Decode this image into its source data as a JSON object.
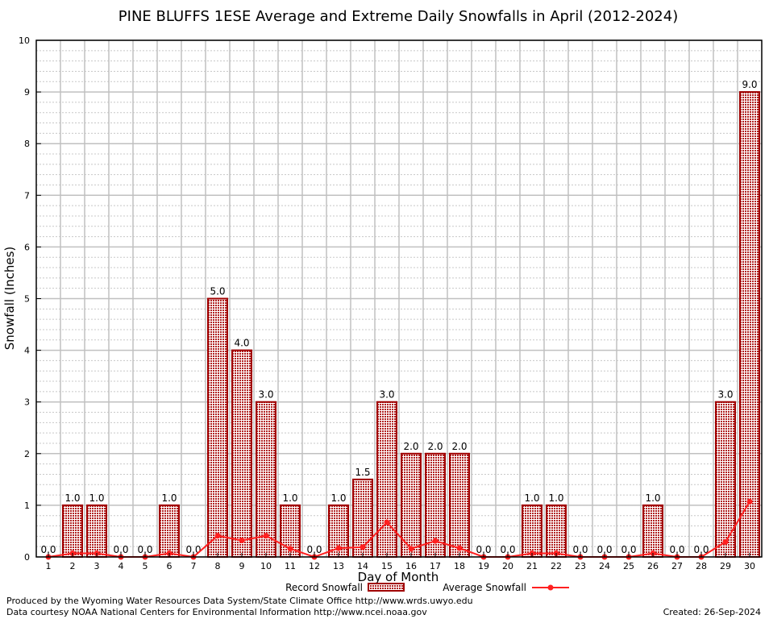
{
  "chart_data": {
    "type": "bar",
    "title": "PINE BLUFFS 1ESE Average and Extreme Daily Snowfalls in April (2012-2024)",
    "xlabel": "Day of Month",
    "ylabel": "Snowfall (Inches)",
    "ylim": [
      0,
      10
    ],
    "yticks": [
      "0",
      "1",
      "2",
      "3",
      "4",
      "5",
      "6",
      "7",
      "8",
      "9",
      "10"
    ],
    "categories": [
      "1",
      "2",
      "3",
      "4",
      "5",
      "6",
      "7",
      "8",
      "9",
      "10",
      "11",
      "12",
      "13",
      "14",
      "15",
      "16",
      "17",
      "18",
      "19",
      "20",
      "21",
      "22",
      "23",
      "24",
      "25",
      "26",
      "27",
      "28",
      "29",
      "30"
    ],
    "series": [
      {
        "name": "Record Snowfall",
        "type": "bar",
        "values": [
          0,
          1,
          1,
          0,
          0,
          1,
          0,
          5,
          4,
          3,
          1,
          0,
          1,
          1.5,
          3,
          2,
          2,
          2,
          0,
          0,
          1,
          1,
          0,
          0,
          0,
          1,
          0,
          0,
          3,
          9
        ],
        "labels": [
          "0.0",
          "1.0",
          "1.0",
          "0.0",
          "0.0",
          "1.0",
          "0.0",
          "5.0",
          "4.0",
          "3.0",
          "1.0",
          "0.0",
          "1.0",
          "1.5",
          "3.0",
          "2.0",
          "2.0",
          "2.0",
          "0.0",
          "0.0",
          "1.0",
          "1.0",
          "0.0",
          "0.0",
          "0.0",
          "1.0",
          "0.0",
          "0.0",
          "3.0",
          "9.0"
        ]
      },
      {
        "name": "Average Snowfall",
        "type": "line",
        "values": [
          0,
          0.07,
          0.07,
          0,
          0,
          0.07,
          0,
          0.41,
          0.32,
          0.41,
          0.16,
          0,
          0.17,
          0.19,
          0.67,
          0.16,
          0.31,
          0.17,
          0,
          0,
          0.07,
          0.07,
          0,
          0,
          0,
          0.07,
          0,
          0,
          0.29,
          1.07
        ]
      }
    ],
    "grid": true,
    "legend": "bottom",
    "colors": {
      "bar_fill": "#c04040",
      "bar_edge": "#a00000",
      "line": "#ff2020",
      "grid": "#c0c0c0"
    }
  },
  "footer": {
    "produced": "Produced by the Wyoming Water Resources Data System/State Climate Office http://www.wrds.uwyo.edu",
    "courtesy": "Data courtesy NOAA National Centers for Environmental Information http://www.ncei.noaa.gov",
    "created": "Created: 26-Sep-2024"
  }
}
